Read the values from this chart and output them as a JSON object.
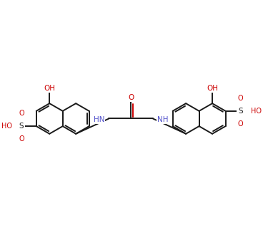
{
  "bg_color": "#ffffff",
  "bond_color": "#1a1a1a",
  "o_color": "#cc0000",
  "n_color": "#5555cc",
  "lw": 1.4,
  "ring_r": 0.36,
  "fig_width": 3.68,
  "fig_height": 3.27,
  "dpi": 100,
  "xlim": [
    -2.5,
    2.5
  ],
  "ylim": [
    -0.9,
    1.3
  ]
}
